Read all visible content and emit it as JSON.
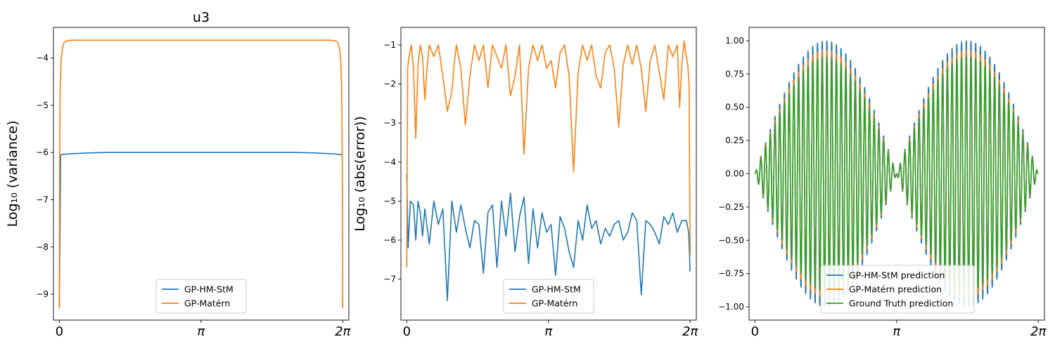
{
  "chart_data": [
    {
      "type": "line",
      "title": "u3",
      "ylabel": "Log₁₀ (variance)",
      "xlim": [
        -0.13,
        6.42
      ],
      "ylim": [
        -9.55,
        -3.35
      ],
      "x_ticks": [
        {
          "value": 0,
          "label": "0"
        },
        {
          "value": 3.14159,
          "label": "π"
        },
        {
          "value": 6.28318,
          "label": "2π"
        }
      ],
      "y_ticks": [
        {
          "value": -4,
          "label": "−4"
        },
        {
          "value": -5,
          "label": "−5"
        },
        {
          "value": -6,
          "label": "−6"
        },
        {
          "value": -7,
          "label": "−7"
        },
        {
          "value": -8,
          "label": "−8"
        },
        {
          "value": -9,
          "label": "−9"
        }
      ],
      "legend": {
        "placement": "lower center",
        "entries": [
          "GP-HM-StM",
          "GP-Matérn"
        ]
      },
      "series": [
        {
          "name": "GP-HM-StM",
          "color": "#1f77b4",
          "x": [
            0,
            0.03,
            0.06,
            0.2,
            0.6,
            1.0,
            3.14,
            5.3,
            5.7,
            6.08,
            6.22,
            6.25,
            6.283
          ],
          "y": [
            -9.3,
            -6.05,
            -6.04,
            -6.03,
            -6.01,
            -6.0,
            -6.0,
            -6.0,
            -6.01,
            -6.03,
            -6.04,
            -6.05,
            -6.05
          ]
        },
        {
          "name": "GP-Matérn",
          "color": "#ff7f0e",
          "x": [
            0,
            0.005,
            0.01,
            0.02,
            0.04,
            0.07,
            0.1,
            0.15,
            0.2,
            0.3,
            1.0,
            3.14,
            5.28,
            5.98,
            6.08,
            6.13,
            6.18,
            6.21,
            6.24,
            6.26,
            6.27,
            6.278,
            6.283
          ],
          "y": [
            -9.3,
            -7.3,
            -5.6,
            -4.6,
            -4.05,
            -3.78,
            -3.68,
            -3.64,
            -3.63,
            -3.62,
            -3.62,
            -3.62,
            -3.62,
            -3.62,
            -3.63,
            -3.64,
            -3.68,
            -3.78,
            -4.05,
            -4.6,
            -5.6,
            -7.3,
            -9.3
          ]
        }
      ]
    },
    {
      "type": "line",
      "ylabel": "Log₁₀ (abs(error))",
      "xlim": [
        -0.13,
        6.42
      ],
      "ylim": [
        -8.05,
        -0.55
      ],
      "x_ticks": [
        {
          "value": 0,
          "label": "0"
        },
        {
          "value": 3.14159,
          "label": "π"
        },
        {
          "value": 6.28318,
          "label": "2π"
        }
      ],
      "y_ticks": [
        {
          "value": -1,
          "label": "−1"
        },
        {
          "value": -2,
          "label": "−2"
        },
        {
          "value": -3,
          "label": "−3"
        },
        {
          "value": -4,
          "label": "−4"
        },
        {
          "value": -5,
          "label": "−5"
        },
        {
          "value": -6,
          "label": "−6"
        },
        {
          "value": -7,
          "label": "−7"
        }
      ],
      "legend": {
        "placement": "lower center",
        "entries": [
          "GP-HM-StM",
          "GP-Matérn"
        ]
      },
      "series": [
        {
          "name": "GP-HM-StM",
          "color": "#1f77b4",
          "x": [
            0,
            0.03,
            0.08,
            0.15,
            0.2,
            0.25,
            0.3,
            0.35,
            0.4,
            0.5,
            0.6,
            0.7,
            0.8,
            0.9,
            1.0,
            1.1,
            1.2,
            1.3,
            1.4,
            1.5,
            1.6,
            1.7,
            1.8,
            1.9,
            2.0,
            2.1,
            2.2,
            2.3,
            2.4,
            2.5,
            2.6,
            2.7,
            2.8,
            2.9,
            3.0,
            3.1,
            3.2,
            3.3,
            3.4,
            3.5,
            3.6,
            3.7,
            3.8,
            3.9,
            4.0,
            4.1,
            4.2,
            4.3,
            4.4,
            4.5,
            4.6,
            4.7,
            4.8,
            4.9,
            5.0,
            5.1,
            5.2,
            5.3,
            5.4,
            5.5,
            5.6,
            5.7,
            5.8,
            5.9,
            6.0,
            6.1,
            6.2,
            6.25,
            6.283
          ],
          "y": [
            -4.3,
            -6.2,
            -5.0,
            -5.1,
            -6.0,
            -5.0,
            -5.3,
            -5.9,
            -5.2,
            -6.1,
            -5.0,
            -5.6,
            -5.2,
            -7.55,
            -5.0,
            -5.8,
            -5.1,
            -5.7,
            -6.2,
            -5.5,
            -5.6,
            -6.85,
            -5.3,
            -5.1,
            -6.7,
            -5.0,
            -5.9,
            -4.8,
            -6.3,
            -5.4,
            -4.9,
            -6.6,
            -5.2,
            -6.2,
            -5.3,
            -5.8,
            -5.6,
            -6.9,
            -5.4,
            -5.7,
            -6.3,
            -6.7,
            -5.5,
            -6.0,
            -5.1,
            -5.7,
            -5.5,
            -6.1,
            -5.7,
            -5.9,
            -5.6,
            -5.5,
            -6.0,
            -5.8,
            -5.3,
            -5.5,
            -7.4,
            -5.5,
            -5.6,
            -5.8,
            -6.1,
            -5.4,
            -5.6,
            -5.3,
            -5.8,
            -5.5,
            -5.5,
            -5.8,
            -6.8
          ]
        },
        {
          "name": "GP-Matérn",
          "color": "#ff7f0e",
          "x": [
            0,
            0.02,
            0.05,
            0.1,
            0.15,
            0.2,
            0.25,
            0.3,
            0.35,
            0.4,
            0.45,
            0.5,
            0.6,
            0.7,
            0.8,
            0.9,
            1.0,
            1.05,
            1.1,
            1.2,
            1.3,
            1.4,
            1.5,
            1.6,
            1.7,
            1.8,
            1.9,
            2.0,
            2.1,
            2.2,
            2.3,
            2.4,
            2.5,
            2.6,
            2.7,
            2.8,
            2.9,
            3.0,
            3.1,
            3.2,
            3.3,
            3.4,
            3.5,
            3.6,
            3.7,
            3.8,
            3.9,
            4.0,
            4.1,
            4.2,
            4.3,
            4.4,
            4.5,
            4.6,
            4.7,
            4.8,
            4.9,
            5.0,
            5.1,
            5.2,
            5.3,
            5.4,
            5.5,
            5.6,
            5.7,
            5.8,
            5.9,
            6.0,
            6.05,
            6.1,
            6.15,
            6.2,
            6.23,
            6.26,
            6.283
          ],
          "y": [
            -6.7,
            -1.6,
            -1.3,
            -1.0,
            -1.6,
            -3.4,
            -1.5,
            -1.0,
            -1.3,
            -2.4,
            -1.6,
            -1.0,
            -1.3,
            -1.0,
            -1.8,
            -2.7,
            -2.2,
            -1.5,
            -1.0,
            -1.6,
            -3.05,
            -1.8,
            -1.0,
            -1.4,
            -1.0,
            -2.1,
            -1.0,
            -1.3,
            -1.6,
            -1.0,
            -2.3,
            -1.8,
            -1.0,
            -3.8,
            -1.6,
            -1.0,
            -1.4,
            -1.0,
            -1.6,
            -1.4,
            -2.1,
            -1.2,
            -1.0,
            -1.8,
            -4.25,
            -1.7,
            -1.0,
            -1.4,
            -1.0,
            -1.8,
            -2.1,
            -1.2,
            -1.0,
            -1.6,
            -3.1,
            -1.5,
            -1.0,
            -1.5,
            -1.0,
            -1.6,
            -2.7,
            -1.4,
            -1.0,
            -1.7,
            -2.4,
            -1.0,
            -1.3,
            -1.0,
            -2.6,
            -1.5,
            -0.9,
            -1.3,
            -1.5,
            -2.0,
            -6.4
          ]
        }
      ]
    },
    {
      "type": "line",
      "xlim": [
        -0.13,
        6.42
      ],
      "ylim": [
        -1.1,
        1.1
      ],
      "x_ticks": [
        {
          "value": 0,
          "label": "0"
        },
        {
          "value": 3.14159,
          "label": "π"
        },
        {
          "value": 6.28318,
          "label": "2π"
        }
      ],
      "y_ticks": [
        {
          "value": 1.0,
          "label": "1.00"
        },
        {
          "value": 0.75,
          "label": "0.75"
        },
        {
          "value": 0.5,
          "label": "0.50"
        },
        {
          "value": 0.25,
          "label": "0.25"
        },
        {
          "value": 0.0,
          "label": "0.00"
        },
        {
          "value": -0.25,
          "label": "−0.25"
        },
        {
          "value": -0.5,
          "label": "−0.50"
        },
        {
          "value": -0.75,
          "label": "−0.75"
        },
        {
          "value": -1.0,
          "label": "−1.00"
        }
      ],
      "legend": {
        "placement": "lower center",
        "entries": [
          "GP-HM-StM prediction",
          "GP-Matérn prediction",
          "Ground Truth prediction"
        ]
      },
      "signal": {
        "form": "sin(x) sin(c x)",
        "carrier_cycles": 60
      },
      "series": [
        {
          "name": "GP-HM-StM prediction",
          "color": "#1f77b4",
          "amplitude": 1.0
        },
        {
          "name": "GP-Matérn prediction",
          "color": "#ff7f0e",
          "amplitude": 0.93
        },
        {
          "name": "Ground Truth prediction",
          "color": "#2ca02c",
          "amplitude": 0.88
        }
      ]
    }
  ]
}
